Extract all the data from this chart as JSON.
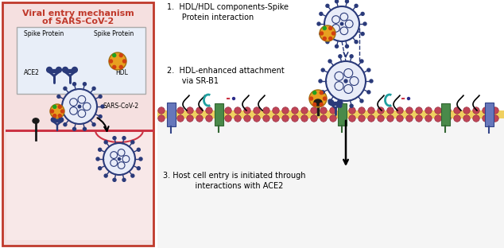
{
  "title_line1": "Viral entry mechanism",
  "title_line2": "of SARS-CoV-2",
  "label1": "1.  HDL/HDL components-Spike\n      Protein interaction",
  "label2": "2.  HDL-enhanced attachment\n      via SR-B1",
  "label3": "3. Host cell entry is initiated through\n    interactions with ACE2",
  "spike_protein_left": "Spike Protein",
  "spike_protein_right": "Spike Protein",
  "ace2_label": "ACE2",
  "hdl_label": "HDL",
  "sars_label": "SARS-CoV-2",
  "bg_color": "#f5e0e0",
  "box_border_color": "#c0392b",
  "inner_box_color": "#e8eef8",
  "virus_color": "#2a3a7a",
  "virus_inner_color": "#e8ecf8",
  "hdl_color": "#e8a020",
  "membrane_head_color": "#c04455",
  "membrane_mid_color": "#f0d060",
  "green_protein_color": "#4a8a4a",
  "blue_protein_color": "#6677bb",
  "receptor_color": "#1a2a5a",
  "sr_b1_color": "#20a0a0",
  "text_color": "#222222"
}
